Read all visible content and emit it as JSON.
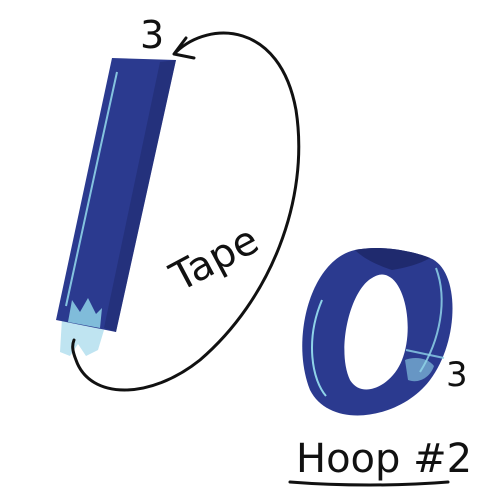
{
  "labels": {
    "top_number": "3",
    "tape_label": "Tape",
    "hoop_number": "3",
    "hoop_caption": "Hoop #2"
  },
  "colors": {
    "fabric": "#2b3a8f",
    "fabric_dark": "#1f2a6e",
    "highlight": "#8fd3e8",
    "tape_end": "#bfe4f1",
    "ink": "#111111"
  },
  "icons": {
    "strip": "fabric-strip-icon",
    "hoop": "hoop-ring-icon",
    "arrow": "curved-arrow-icon"
  }
}
